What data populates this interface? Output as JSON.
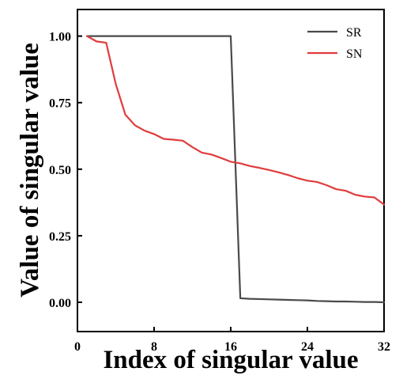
{
  "chart_data": {
    "type": "line",
    "xlabel": "Index of singular value",
    "ylabel": "Value of singular value",
    "xlim": [
      0,
      32
    ],
    "ylim": [
      -0.11,
      1.1
    ],
    "x_ticks": [
      0,
      8,
      16,
      24,
      32
    ],
    "x_tick_labels": [
      "0",
      "8",
      "16",
      "24",
      "32"
    ],
    "y_ticks": [
      0.0,
      0.25,
      0.5,
      0.75,
      1.0
    ],
    "y_tick_labels": [
      "0.00",
      "0.25",
      "0.50",
      "0.75",
      "1.00"
    ],
    "grid": false,
    "legend_position": "top-right",
    "series": [
      {
        "name": "SR",
        "color": "#4a4a4a",
        "points": [
          [
            1,
            1.0
          ],
          [
            2,
            1.0
          ],
          [
            3,
            1.0
          ],
          [
            4,
            1.0
          ],
          [
            5,
            1.0
          ],
          [
            6,
            1.0
          ],
          [
            7,
            1.0
          ],
          [
            8,
            1.0
          ],
          [
            9,
            1.0
          ],
          [
            10,
            1.0
          ],
          [
            11,
            1.0
          ],
          [
            12,
            1.0
          ],
          [
            13,
            1.0
          ],
          [
            14,
            1.0
          ],
          [
            15,
            1.0
          ],
          [
            16,
            1.0
          ],
          [
            17,
            0.015
          ],
          [
            18,
            0.013
          ],
          [
            19,
            0.012
          ],
          [
            20,
            0.011
          ],
          [
            21,
            0.01
          ],
          [
            22,
            0.009
          ],
          [
            23,
            0.008
          ],
          [
            24,
            0.007
          ],
          [
            25,
            0.005
          ],
          [
            26,
            0.004
          ],
          [
            27,
            0.003
          ],
          [
            28,
            0.003
          ],
          [
            29,
            0.002
          ],
          [
            30,
            0.001
          ],
          [
            31,
            0.001
          ],
          [
            32,
            0.0
          ]
        ]
      },
      {
        "name": "SN",
        "color": "#e03c3c",
        "points": [
          [
            1,
            1.0
          ],
          [
            2,
            0.98
          ],
          [
            3,
            0.975
          ],
          [
            4,
            0.82
          ],
          [
            5,
            0.705
          ],
          [
            6,
            0.665
          ],
          [
            7,
            0.645
          ],
          [
            8,
            0.632
          ],
          [
            9,
            0.614
          ],
          [
            10,
            0.611
          ],
          [
            11,
            0.607
          ],
          [
            12,
            0.583
          ],
          [
            13,
            0.562
          ],
          [
            14,
            0.555
          ],
          [
            15,
            0.542
          ],
          [
            16,
            0.528
          ],
          [
            17,
            0.522
          ],
          [
            18,
            0.512
          ],
          [
            19,
            0.505
          ],
          [
            20,
            0.497
          ],
          [
            21,
            0.488
          ],
          [
            22,
            0.478
          ],
          [
            23,
            0.466
          ],
          [
            24,
            0.457
          ],
          [
            25,
            0.452
          ],
          [
            26,
            0.44
          ],
          [
            27,
            0.425
          ],
          [
            28,
            0.419
          ],
          [
            29,
            0.404
          ],
          [
            30,
            0.397
          ],
          [
            31,
            0.394
          ],
          [
            32,
            0.367
          ]
        ]
      }
    ]
  }
}
